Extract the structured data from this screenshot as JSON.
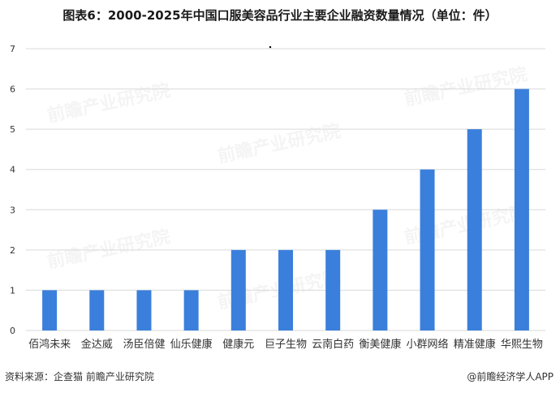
{
  "header": {
    "title": "图表6：2000-2025年中国口服美容品行业主要企业融资数量情况（单位：件）"
  },
  "footer": {
    "source": "资料来源：企查猫 前瞻产业研究院",
    "brand": "@前瞻经济学人APP"
  },
  "watermark": {
    "text": "前瞻产业研究院"
  },
  "colors": {
    "bar": "#3a7fdc",
    "grid": "#d9d9d9",
    "axis_text": "#333333"
  },
  "chart_data": {
    "type": "bar",
    "title": "图表6：2000-2025年中国口服美容品行业主要企业融资数量情况（单位：件）",
    "xlabel": "",
    "ylabel": "",
    "categories": [
      "佰鸿未来",
      "金达威",
      "汤臣倍健",
      "仙乐健康",
      "健康元",
      "巨子生物",
      "云南白药",
      "衡美健康",
      "小群网络",
      "精准健康",
      "华熙生物"
    ],
    "values": [
      1,
      1,
      1,
      1,
      2,
      2,
      2,
      3,
      4,
      5,
      6
    ],
    "ylim": [
      0,
      7
    ],
    "yticks": [
      0,
      1,
      2,
      3,
      4,
      5,
      6,
      7
    ],
    "grid": true,
    "legend": "none"
  }
}
